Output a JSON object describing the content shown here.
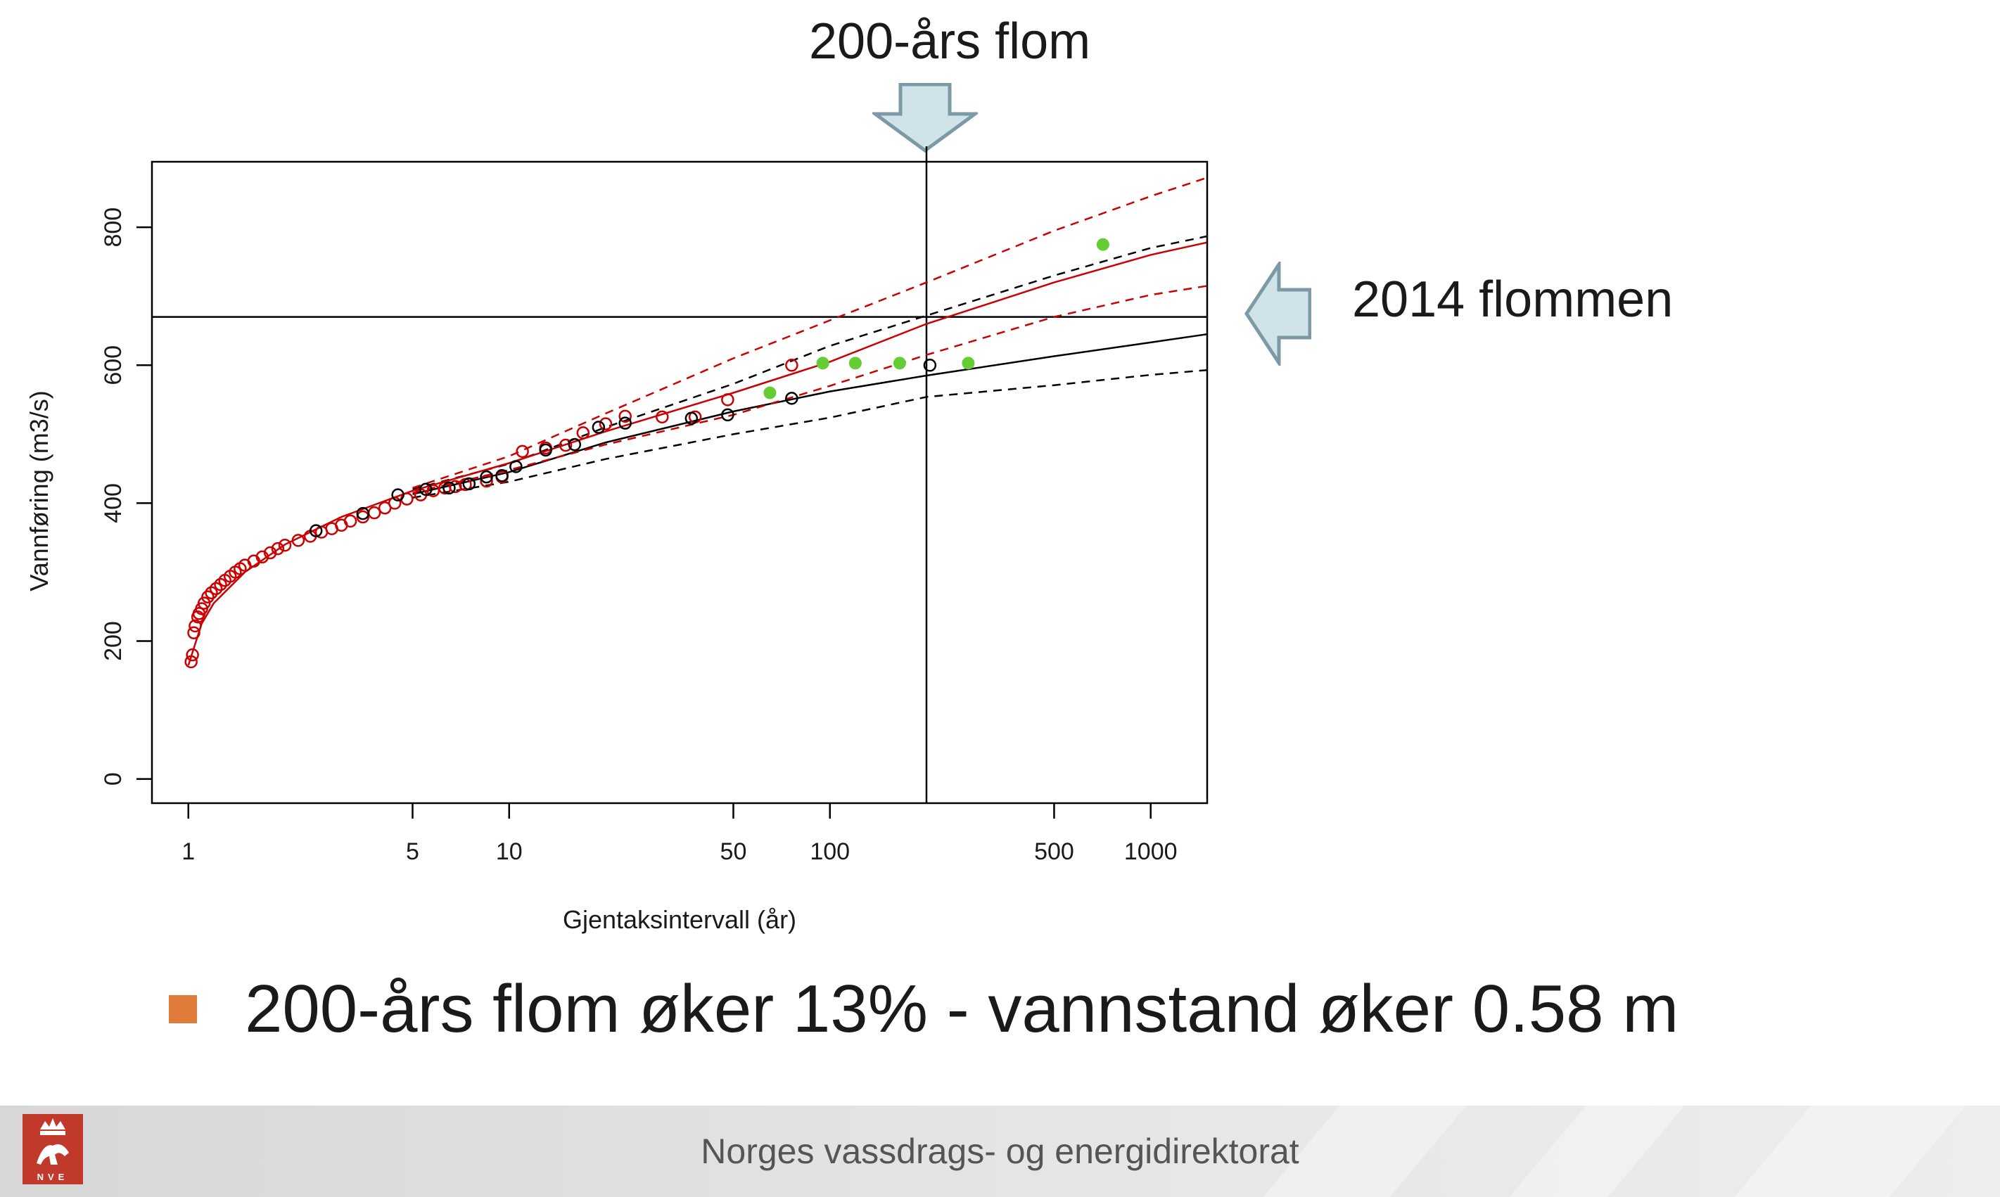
{
  "annotations": {
    "top_label": "200-års flom",
    "right_label": "2014 flommen"
  },
  "bullet": {
    "text": "200-års flom øker 13% - vannstand øker 0.58 m",
    "color": "#e07b39"
  },
  "footer": {
    "org_name": "Norges vassdrags- og energidirektorat",
    "logo_text": "NVE",
    "logo_color": "#c0392b"
  },
  "chart_data": {
    "type": "scatter",
    "xlabel": "Gjentaksintervall (år)",
    "ylabel": "Vannføring (m3/s)",
    "xscale": "log",
    "xlim": [
      0.77,
      1500
    ],
    "ylim": [
      -35,
      895
    ],
    "xticks": [
      1,
      5,
      10,
      50,
      100,
      500,
      1000
    ],
    "yticks": [
      0,
      200,
      400,
      600,
      800
    ],
    "ref_lines": {
      "vertical_x": 200,
      "horizontal_y": 670
    },
    "colors": {
      "black": "#000000",
      "red": "#cc0000",
      "green": "#66cc33"
    },
    "series": [
      {
        "style": "solid",
        "color": "black",
        "points": [
          [
            5,
            413
          ],
          [
            10,
            445
          ],
          [
            20,
            488
          ],
          [
            50,
            533
          ],
          [
            100,
            562
          ],
          [
            200,
            585
          ],
          [
            500,
            613
          ],
          [
            1000,
            633
          ],
          [
            1500,
            645
          ]
        ]
      },
      {
        "style": "dashed",
        "color": "black",
        "points": [
          [
            5,
            408
          ],
          [
            10,
            431
          ],
          [
            20,
            464
          ],
          [
            50,
            500
          ],
          [
            100,
            524
          ],
          [
            200,
            554
          ],
          [
            500,
            571
          ],
          [
            1000,
            586
          ],
          [
            1500,
            593
          ]
        ]
      },
      {
        "style": "dashed",
        "color": "black",
        "points": [
          [
            5,
            420
          ],
          [
            10,
            457
          ],
          [
            20,
            510
          ],
          [
            50,
            573
          ],
          [
            100,
            628
          ],
          [
            200,
            672
          ],
          [
            500,
            730
          ],
          [
            1000,
            770
          ],
          [
            1500,
            787
          ]
        ]
      },
      {
        "style": "solid",
        "color": "red",
        "points": [
          [
            1,
            165
          ],
          [
            1.1,
            225
          ],
          [
            1.2,
            255
          ],
          [
            1.5,
            300
          ],
          [
            2,
            340
          ],
          [
            3,
            380
          ],
          [
            5,
            418
          ],
          [
            10,
            458
          ],
          [
            20,
            504
          ],
          [
            50,
            560
          ],
          [
            100,
            605
          ],
          [
            200,
            660
          ],
          [
            500,
            720
          ],
          [
            1000,
            760
          ],
          [
            1500,
            778
          ]
        ]
      },
      {
        "style": "dashed",
        "color": "red",
        "points": [
          [
            5,
            415
          ],
          [
            10,
            448
          ],
          [
            20,
            485
          ],
          [
            50,
            528
          ],
          [
            100,
            570
          ],
          [
            200,
            615
          ],
          [
            500,
            670
          ],
          [
            1000,
            702
          ],
          [
            1500,
            715
          ]
        ]
      },
      {
        "style": "dashed",
        "color": "red",
        "points": [
          [
            5,
            422
          ],
          [
            10,
            468
          ],
          [
            20,
            530
          ],
          [
            50,
            610
          ],
          [
            100,
            665
          ],
          [
            200,
            720
          ],
          [
            500,
            795
          ],
          [
            1000,
            845
          ],
          [
            1500,
            872
          ]
        ]
      }
    ],
    "points": {
      "red_open": [
        [
          1.02,
          170
        ],
        [
          1.03,
          180
        ],
        [
          1.04,
          212
        ],
        [
          1.05,
          222
        ],
        [
          1.07,
          235
        ],
        [
          1.08,
          240
        ],
        [
          1.1,
          247
        ],
        [
          1.12,
          255
        ],
        [
          1.15,
          264
        ],
        [
          1.18,
          270
        ],
        [
          1.22,
          276
        ],
        [
          1.26,
          282
        ],
        [
          1.3,
          288
        ],
        [
          1.35,
          294
        ],
        [
          1.4,
          300
        ],
        [
          1.45,
          305
        ],
        [
          1.5,
          310
        ],
        [
          1.6,
          316
        ],
        [
          1.7,
          322
        ],
        [
          1.8,
          328
        ],
        [
          1.9,
          334
        ],
        [
          2,
          339
        ],
        [
          2.2,
          346
        ],
        [
          2.4,
          352
        ],
        [
          2.6,
          358
        ],
        [
          2.8,
          363
        ],
        [
          3,
          368
        ],
        [
          3.2,
          374
        ],
        [
          3.5,
          380
        ],
        [
          3.8,
          386
        ],
        [
          4.1,
          393
        ],
        [
          4.4,
          400
        ],
        [
          4.8,
          406
        ],
        [
          5.3,
          412
        ],
        [
          5.8,
          418
        ],
        [
          6.3,
          422
        ],
        [
          6.8,
          424
        ],
        [
          7.3,
          427
        ],
        [
          8.5,
          432
        ],
        [
          9.5,
          438
        ],
        [
          11,
          475
        ],
        [
          13,
          480
        ],
        [
          15,
          484
        ],
        [
          17,
          502
        ],
        [
          20,
          515
        ],
        [
          23,
          526
        ],
        [
          30,
          525
        ],
        [
          38,
          525
        ],
        [
          48,
          550
        ],
        [
          76,
          600
        ]
      ],
      "black_open": [
        [
          2.5,
          360
        ],
        [
          3.5,
          385
        ],
        [
          4.5,
          412
        ],
        [
          5.5,
          420
        ],
        [
          6.5,
          422
        ],
        [
          7.5,
          428
        ],
        [
          8.5,
          438
        ],
        [
          9.5,
          440
        ],
        [
          10.5,
          453
        ],
        [
          13,
          477
        ],
        [
          16,
          485
        ],
        [
          19,
          510
        ],
        [
          23,
          516
        ],
        [
          37,
          523
        ],
        [
          48,
          528
        ],
        [
          76,
          552
        ],
        [
          205,
          600
        ]
      ],
      "green_filled": [
        [
          65,
          560
        ],
        [
          95,
          603
        ],
        [
          120,
          603
        ],
        [
          165,
          603
        ],
        [
          270,
          603
        ],
        [
          710,
          775
        ]
      ]
    }
  }
}
